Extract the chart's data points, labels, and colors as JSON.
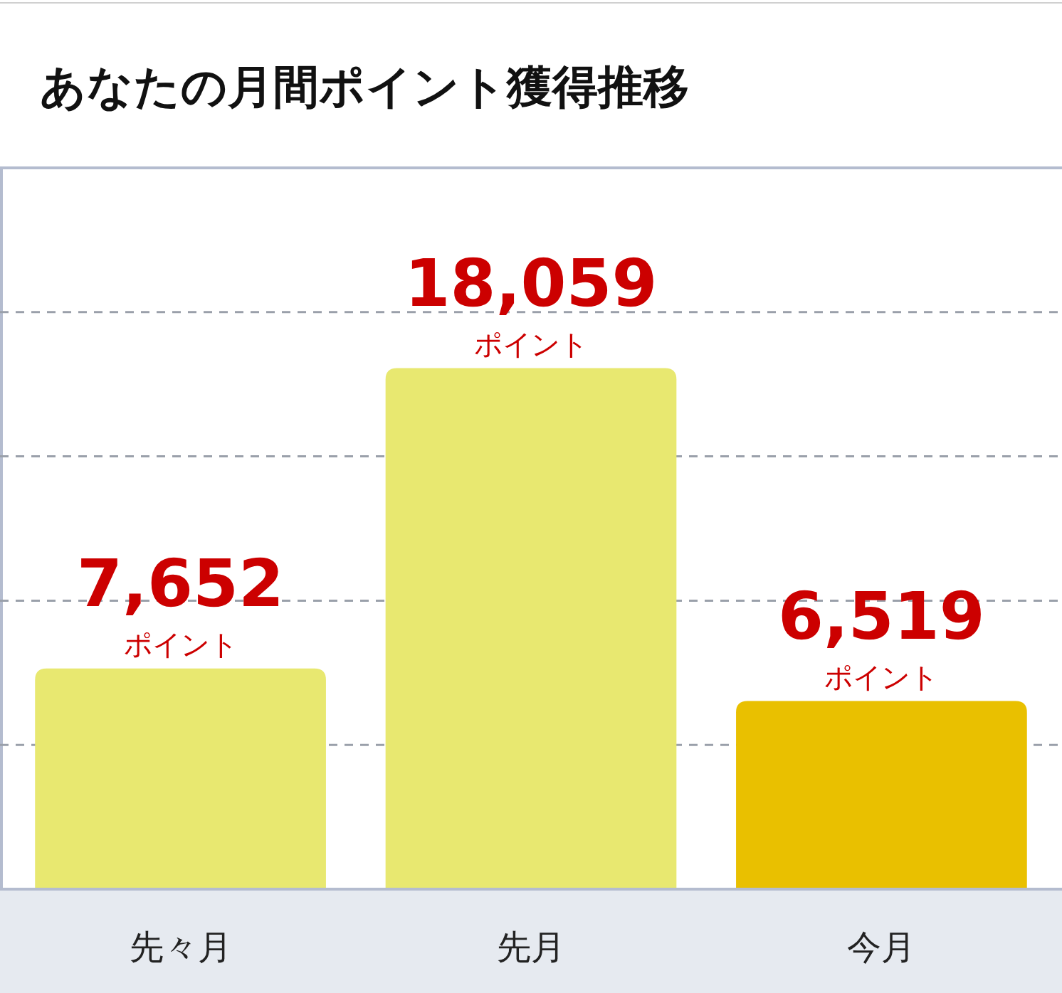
{
  "chart_data": {
    "type": "bar",
    "title": "あなたの月間ポイント獲得推移",
    "categories": [
      "先々月",
      "先月",
      "今月"
    ],
    "values": [
      7652,
      18059,
      6519
    ],
    "colors": [
      "#e8e870",
      "#e8e870",
      "#e9c000"
    ],
    "value_labels": [
      "7,652\nポイント",
      "18,059\nポイント",
      "6,519\nポイント"
    ],
    "ylim": [
      0,
      25000
    ],
    "yticks": [
      {
        "value": 5000,
        "label": null
      },
      {
        "value": 10000,
        "label": null
      },
      {
        "value": 15000,
        "label": null
      },
      {
        "value": 20000,
        "label": null
      }
    ],
    "grid": "y",
    "tick_labels": "x"
  }
}
